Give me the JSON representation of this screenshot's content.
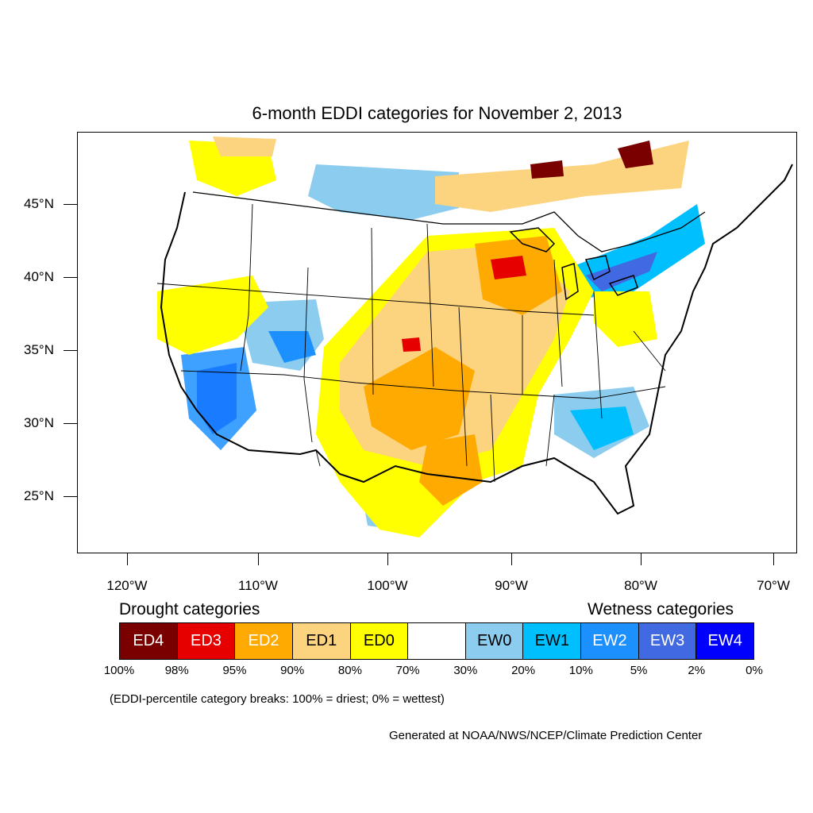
{
  "title": "6-month EDDI categories for November 2, 2013",
  "map": {
    "lat_labels": [
      "45°N",
      "40°N",
      "35°N",
      "30°N",
      "25°N"
    ],
    "lon_labels": [
      "120°W",
      "110°W",
      "100°W",
      "90°W",
      "80°W",
      "70°W"
    ],
    "colors": {
      "ED4": "#7a0000",
      "ED3": "#e60000",
      "ED2": "#ffaa00",
      "ED1": "#fcd37f",
      "ED0": "#ffff00",
      "EW0": "#8ccdef",
      "EW1": "#00bfff",
      "EW2": "#1d90ff",
      "EW3": "#4169e1",
      "EW4": "#0000ff"
    }
  },
  "legend": {
    "drought_heading": "Drought categories",
    "wetness_heading": "Wetness categories",
    "cells": [
      {
        "label": "ED4",
        "color": "#7a0000",
        "text_color": "#ffffff"
      },
      {
        "label": "ED3",
        "color": "#e60000",
        "text_color": "#ffffff"
      },
      {
        "label": "ED2",
        "color": "#ffaa00",
        "text_color": "#ffffff"
      },
      {
        "label": "ED1",
        "color": "#fcd37f",
        "text_color": "#000000"
      },
      {
        "label": "ED0",
        "color": "#ffff00",
        "text_color": "#000000"
      },
      {
        "label": "",
        "color": "#ffffff",
        "text_color": "#000000"
      },
      {
        "label": "EW0",
        "color": "#8ccdef",
        "text_color": "#000000"
      },
      {
        "label": "EW1",
        "color": "#00bfff",
        "text_color": "#000000"
      },
      {
        "label": "EW2",
        "color": "#1d90ff",
        "text_color": "#ffffff"
      },
      {
        "label": "EW3",
        "color": "#4169e1",
        "text_color": "#ffffff"
      },
      {
        "label": "EW4",
        "color": "#0000ff",
        "text_color": "#ffffff"
      }
    ],
    "percentiles": [
      "100%",
      "98%",
      "95%",
      "90%",
      "80%",
      "70%",
      "30%",
      "20%",
      "10%",
      "5%",
      "2%",
      "0%"
    ],
    "note": "(EDDI-percentile category breaks: 100% = driest; 0% = wettest)"
  },
  "credit": "Generated at NOAA/NWS/NCEP/Climate Prediction Center"
}
